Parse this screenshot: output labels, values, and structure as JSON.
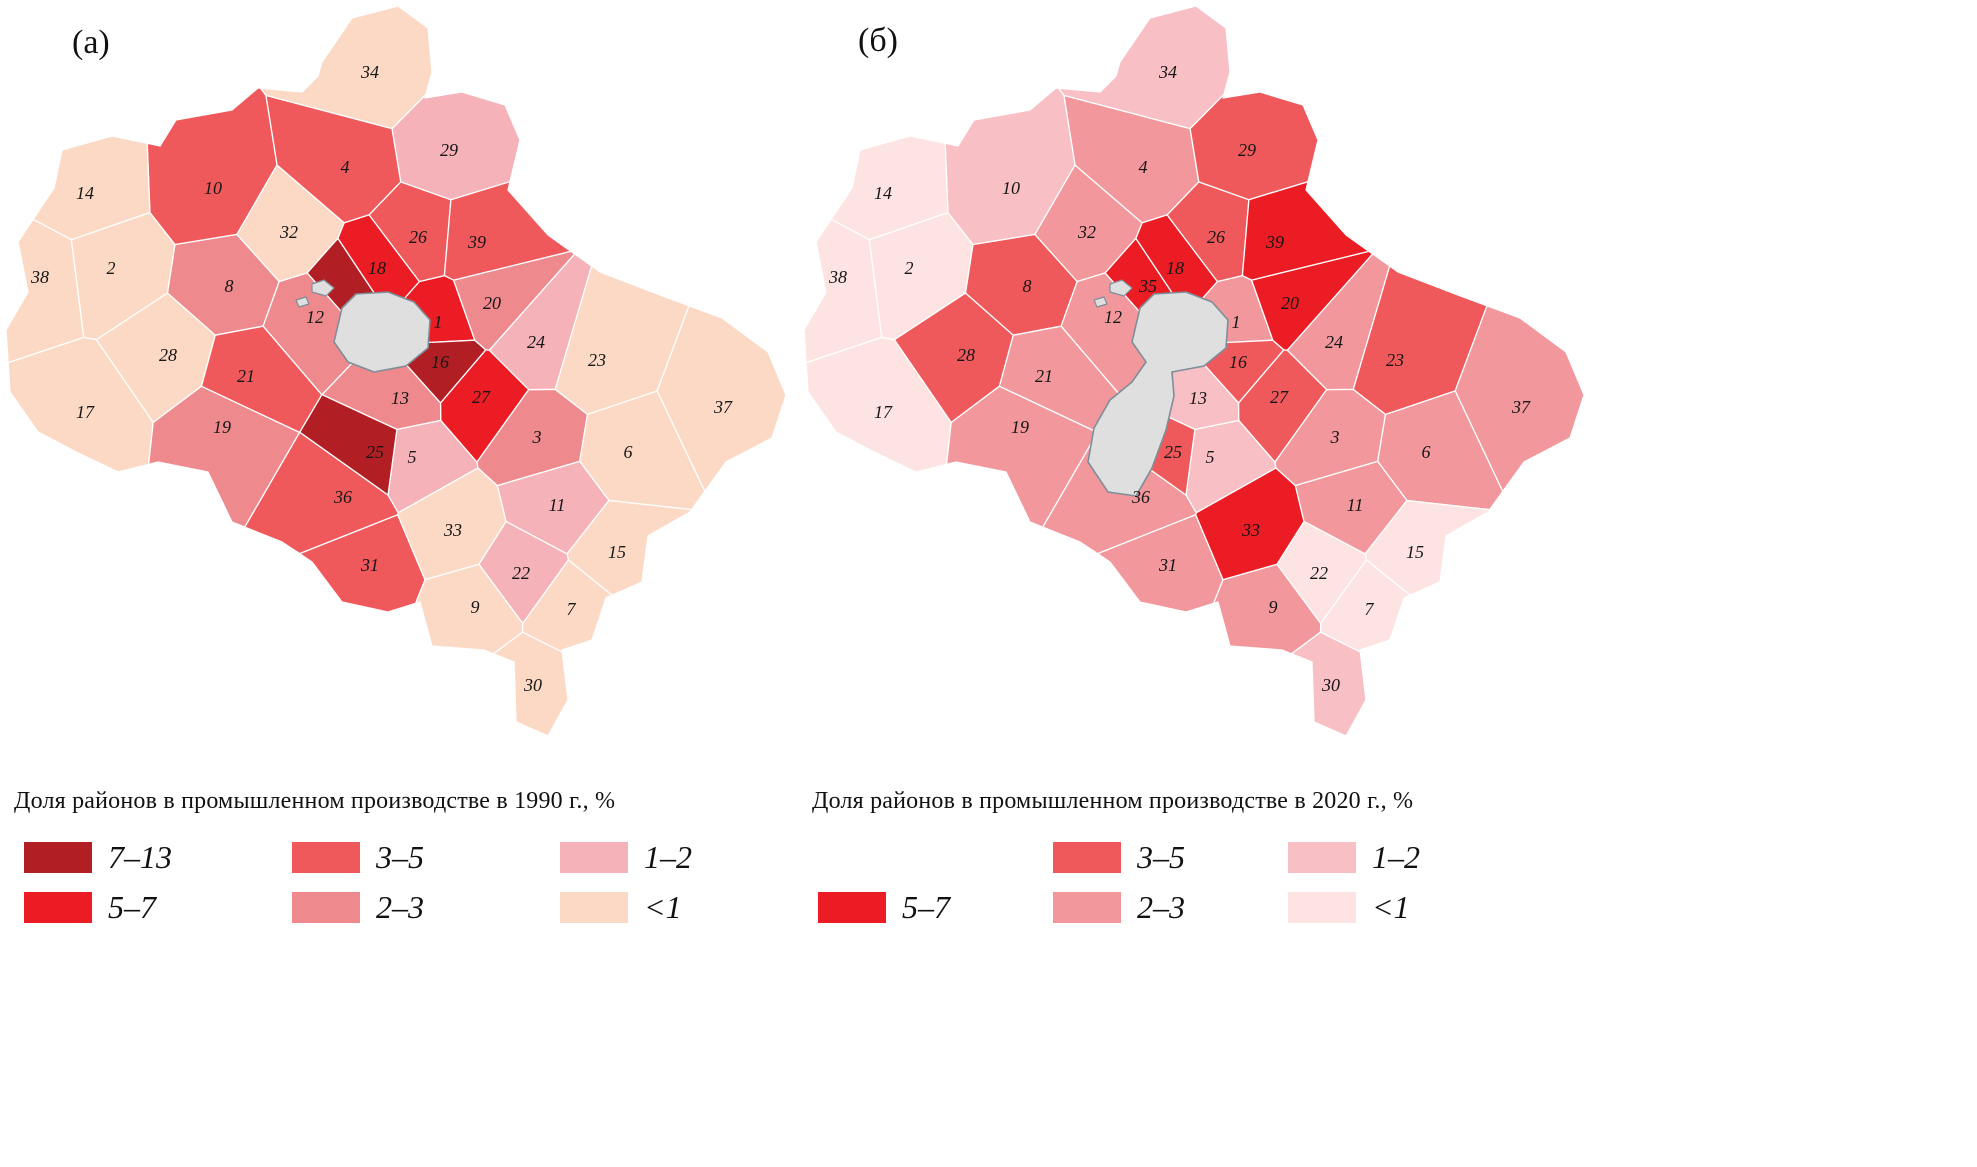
{
  "map_style": {
    "moscow_city_fill": "#dfdfdf",
    "moscow_city_stroke": "#7e8e99",
    "district_border_color": "#ffffff",
    "label_color": "#161616"
  },
  "chart_data": [
    {
      "type": "choropleth",
      "corner_label": "(а)",
      "title": "Доля районов в промышленном производстве в 1990 г., %",
      "legend": [
        {
          "label": "7–13",
          "color": "#b11e23"
        },
        {
          "label": "5–7",
          "color": "#ec1c24"
        },
        {
          "label": "3–5",
          "color": "#f0595c"
        },
        {
          "label": "2–3",
          "color": "#ee8a8e"
        },
        {
          "label": "1–2",
          "color": "#f5b2b9"
        },
        {
          "label": "<1",
          "color": "#fcd9c5"
        }
      ],
      "moscow_shape": "compact",
      "hidden_labels": [
        "35"
      ],
      "districts": {
        "1": "5–7",
        "2": "<1",
        "3": "2–3",
        "4": "3–5",
        "5": "1–2",
        "6": "<1",
        "7": "<1",
        "8": "2–3",
        "9": "<1",
        "10": "3–5",
        "11": "1–2",
        "12": "2–3",
        "13": "2–3",
        "14": "<1",
        "15": "<1",
        "16": "7–13",
        "17": "<1",
        "18": "5–7",
        "19": "2–3",
        "20": "2–3",
        "21": "3–5",
        "22": "1–2",
        "23": "<1",
        "24": "1–2",
        "25": "7–13",
        "26": "3–5",
        "27": "5–7",
        "28": "<1",
        "29": "1–2",
        "30": "<1",
        "31": "3–5",
        "32": "<1",
        "33": "<1",
        "34": "<1",
        "35": "7–13",
        "36": "3–5",
        "37": "<1",
        "38": "<1",
        "39": "3–5"
      }
    },
    {
      "type": "choropleth",
      "corner_label": "(б)",
      "title": "Доля районов в промышленном производстве в 2020 г., %",
      "legend": [
        {
          "label": "5–7",
          "color": "#ec1c24"
        },
        {
          "label": "3–5",
          "color": "#f0595c"
        },
        {
          "label": "2–3",
          "color": "#f2979b"
        },
        {
          "label": "1–2",
          "color": "#f8bfc5"
        },
        {
          "label": "<1",
          "color": "#fde3e1"
        }
      ],
      "moscow_shape": "expanded",
      "hidden_labels": [],
      "districts": {
        "1": "2–3",
        "2": "<1",
        "3": "2–3",
        "4": "2–3",
        "5": "1–2",
        "6": "2–3",
        "7": "<1",
        "8": "3–5",
        "9": "2–3",
        "10": "1–2",
        "11": "2–3",
        "12": "2–3",
        "13": "1–2",
        "14": "<1",
        "15": "<1",
        "16": "3–5",
        "17": "<1",
        "18": "5–7",
        "19": "2–3",
        "20": "5–7",
        "21": "2–3",
        "22": "<1",
        "23": "3–5",
        "24": "2–3",
        "25": "3–5",
        "26": "3–5",
        "27": "3–5",
        "28": "3–5",
        "29": "3–5",
        "30": "1–2",
        "31": "2–3",
        "32": "2–3",
        "33": "5–7",
        "34": "1–2",
        "35": "5–7",
        "36": "2–3",
        "37": "2–3",
        "38": "<1",
        "39": "5–7"
      }
    }
  ]
}
